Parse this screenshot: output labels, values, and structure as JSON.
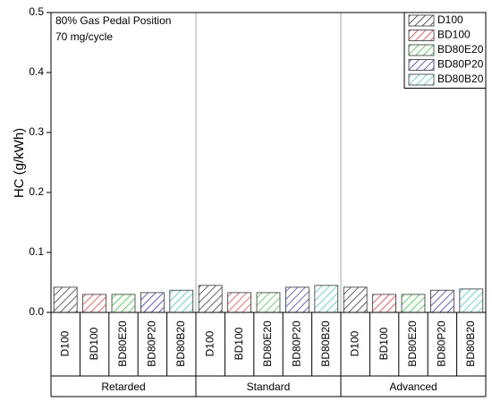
{
  "chart_data": {
    "type": "bar",
    "ylabel": "HC (g/kWh)",
    "annotations": [
      "80% Gas Pedal Position",
      "70 mg/cycle"
    ],
    "categories": [
      "Retarded",
      "Standard",
      "Advanced"
    ],
    "series": [
      {
        "name": "D100",
        "color": "#000000",
        "values": [
          0.042,
          0.045,
          0.042
        ]
      },
      {
        "name": "BD100",
        "color": "#ff0000",
        "values": [
          0.03,
          0.033,
          0.03
        ]
      },
      {
        "name": "BD80E20",
        "color": "#00c000",
        "values": [
          0.03,
          0.033,
          0.03
        ]
      },
      {
        "name": "BD80P20",
        "color": "#0000c0",
        "values": [
          0.033,
          0.042,
          0.037
        ]
      },
      {
        "name": "BD80B20",
        "color": "#00c0c0",
        "values": [
          0.037,
          0.045,
          0.039
        ]
      }
    ],
    "ylim": [
      0,
      0.5
    ],
    "yticks": [
      {
        "value": 0,
        "label": "0.0"
      },
      0.1,
      0.2,
      0.3,
      0.4,
      0.5
    ],
    "legend": "upper right",
    "hatch": true
  }
}
